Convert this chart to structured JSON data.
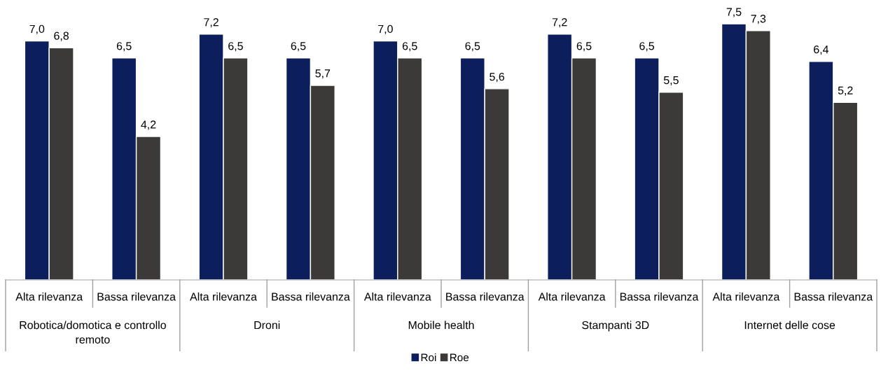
{
  "chart_data": {
    "type": "bar",
    "categories": [
      "Alta rilevanza",
      "Bassa rilevanza",
      "Alta rilevanza",
      "Bassa rilevanza",
      "Alta rilevanza",
      "Bassa rilevanza",
      "Alta rilevanza",
      "Bassa rilevanza",
      "Alta rilevanza",
      "Bassa rilevanza"
    ],
    "annotations": [
      "Robotica/domotica e controllo remoto",
      "Droni",
      "Mobile health",
      "Stampanti 3D",
      "Internet delle cose"
    ],
    "series": [
      {
        "name": "Roi",
        "color": "#0c1f5c",
        "values": [
          7.0,
          6.5,
          7.2,
          6.5,
          7.0,
          6.5,
          7.2,
          6.5,
          7.5,
          6.4
        ],
        "value_labels": [
          "7,0",
          "6,5",
          "7,2",
          "6,5",
          "7,0",
          "6,5",
          "7,2",
          "6,5",
          "7,5",
          "6,4"
        ]
      },
      {
        "name": "Roe",
        "color": "#3b3a38",
        "values": [
          6.8,
          4.2,
          6.5,
          5.7,
          6.5,
          5.6,
          6.5,
          5.5,
          7.3,
          5.2
        ],
        "value_labels": [
          "6,8",
          "4,2",
          "6,5",
          "5,7",
          "6,5",
          "5,6",
          "6,5",
          "5,5",
          "7,3",
          "5,2"
        ]
      }
    ],
    "legend": "bottom"
  }
}
